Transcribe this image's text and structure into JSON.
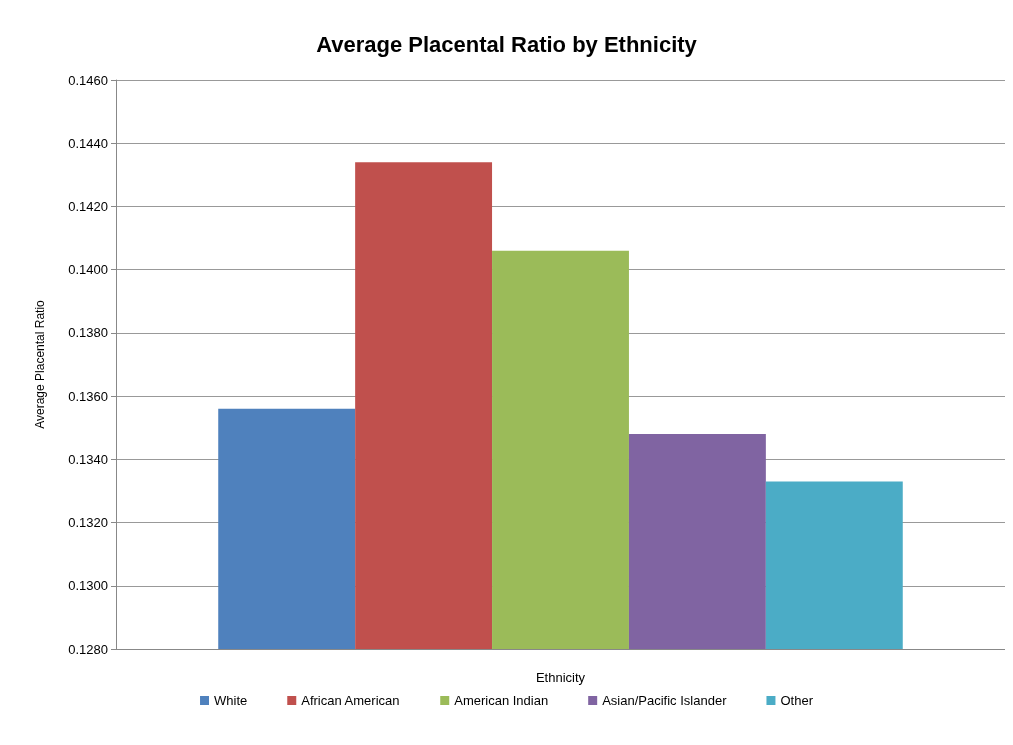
{
  "chart_data": {
    "type": "bar",
    "title": "Average Placental Ratio by Ethnicity",
    "xlabel": "Ethnicity",
    "ylabel": "Average Placental Ratio",
    "categories": [
      null
    ],
    "series": [
      {
        "name": "White",
        "color": "#4f81bd",
        "values": [
          0.1356
        ]
      },
      {
        "name": "African American",
        "color": "#c0504d",
        "values": [
          0.1434
        ]
      },
      {
        "name": "American Indian",
        "color": "#9bbb59",
        "values": [
          0.1406
        ]
      },
      {
        "name": "Asian/Pacific Islander",
        "color": "#8064a2",
        "values": [
          0.1348
        ]
      },
      {
        "name": "Other",
        "color": "#4bacc6",
        "values": [
          0.1333
        ]
      }
    ],
    "ylim": [
      0.128,
      0.146
    ],
    "yticks": [
      {
        "value": 0.128,
        "label": "0.1280"
      },
      {
        "value": 0.13,
        "label": "0.1300"
      },
      {
        "value": 0.132,
        "label": "0.1320"
      },
      {
        "value": 0.134,
        "label": "0.1340"
      },
      {
        "value": 0.136,
        "label": "0.1360"
      },
      {
        "value": 0.138,
        "label": "0.1380"
      },
      {
        "value": 0.14,
        "label": "0.1400"
      },
      {
        "value": 0.142,
        "label": "0.1420"
      },
      {
        "value": 0.144,
        "label": "0.1440"
      },
      {
        "value": 0.146,
        "label": "0.1460"
      }
    ],
    "grid": "y",
    "legend": "bottom"
  }
}
